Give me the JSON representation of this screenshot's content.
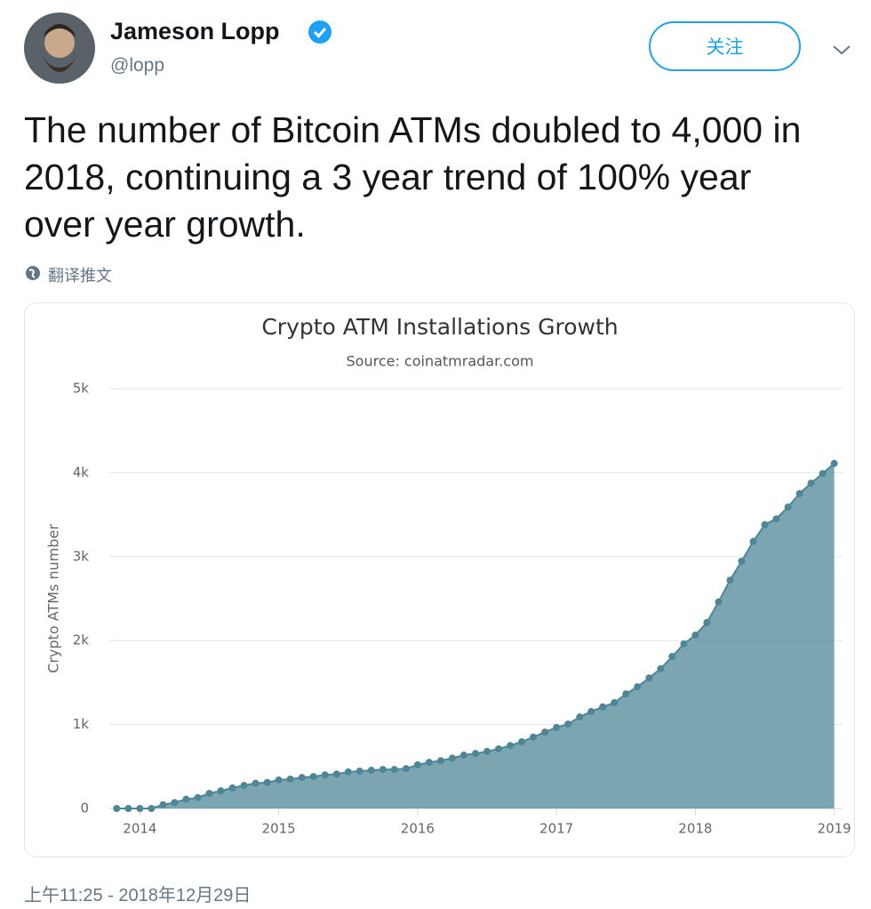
{
  "tweet": {
    "name": "Jameson Lopp",
    "handle": "@lopp",
    "follow": "关注",
    "text": "The number of Bitcoin ATMs doubled to 4,000 in 2018, continuing a 3 year trend of 100% year over year growth.",
    "translate": "翻译推文",
    "timestamp": "上午11:25 - 2018年12月29日"
  },
  "chart_data": {
    "type": "area",
    "title": "Crypto ATM Installations Growth",
    "subtitle": "Source: coinatmradar.com",
    "y_label": "Crypto ATMs number",
    "color": "#4d8797",
    "x": [
      2013.833,
      2013.917,
      2014,
      2014.083,
      2014.167,
      2014.25,
      2014.333,
      2014.417,
      2014.5,
      2014.583,
      2014.667,
      2014.75,
      2014.833,
      2014.917,
      2015,
      2015.083,
      2015.167,
      2015.25,
      2015.333,
      2015.417,
      2015.5,
      2015.583,
      2015.667,
      2015.75,
      2015.833,
      2015.917,
      2016,
      2016.083,
      2016.167,
      2016.25,
      2016.333,
      2016.417,
      2016.5,
      2016.583,
      2016.667,
      2016.75,
      2016.833,
      2016.917,
      2017,
      2017.083,
      2017.167,
      2017.25,
      2017.333,
      2017.417,
      2017.5,
      2017.583,
      2017.667,
      2017.75,
      2017.833,
      2017.917,
      2018,
      2018.083,
      2018.167,
      2018.25,
      2018.333,
      2018.417,
      2018.5,
      2018.583,
      2018.667,
      2018.75,
      2018.833,
      2018.917,
      2019
    ],
    "values": [
      0,
      0,
      0,
      0,
      45,
      70,
      110,
      130,
      180,
      210,
      245,
      275,
      300,
      310,
      340,
      350,
      370,
      380,
      400,
      410,
      435,
      445,
      455,
      465,
      465,
      475,
      520,
      550,
      570,
      600,
      635,
      655,
      680,
      710,
      750,
      795,
      850,
      910,
      965,
      1005,
      1090,
      1155,
      1210,
      1260,
      1365,
      1450,
      1555,
      1665,
      1810,
      1960,
      2065,
      2215,
      2460,
      2720,
      2945,
      3180,
      3380,
      3450,
      3590,
      3750,
      3875,
      3990,
      4110
    ],
    "xlim": [
      2013.78,
      2019.06
    ],
    "xticks": [
      2014,
      2015,
      2016,
      2017,
      2018,
      2019
    ],
    "ylim": [
      0,
      5000
    ],
    "yticks": [
      0,
      {
        "value": 1000,
        "label": "1k"
      },
      {
        "value": 2000,
        "label": "2k"
      },
      {
        "value": 3000,
        "label": "3k"
      },
      {
        "value": 4000,
        "label": "4k"
      },
      {
        "value": 5000,
        "label": "5k"
      }
    ],
    "grid": true
  }
}
